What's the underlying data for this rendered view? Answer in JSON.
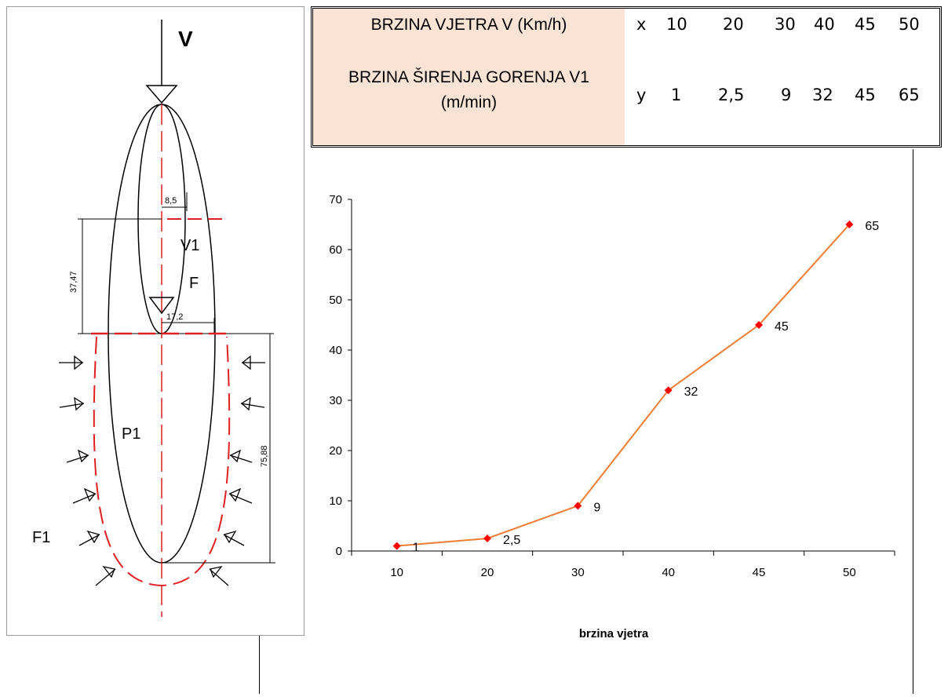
{
  "diagram": {
    "v_label": "V",
    "v1_label": "V1",
    "f_label": "F",
    "p1_label": "P1",
    "f1_label": "F1",
    "dim_8_5": "8,5",
    "dim_37_47": "37,47",
    "dim_17_2": "17,2",
    "dim_75_88": "75,88"
  },
  "table": {
    "row1_label": "BRZINA VJETRA V (Km/h)",
    "row2_label_line1": "BRZINA ŠIRENJA GORENJA V1",
    "row2_label_line2": "(m/min)",
    "x_symbol": "x",
    "y_symbol": "y",
    "x_values": [
      "10",
      "20",
      "30",
      "40",
      "45",
      "50"
    ],
    "y_values": [
      "1",
      "2,5",
      "9",
      "32",
      "45",
      "65"
    ],
    "label_fill": "#fbe4d5"
  },
  "chart_data": {
    "type": "line",
    "categories": [
      "10",
      "20",
      "30",
      "40",
      "45",
      "50"
    ],
    "series": [
      {
        "values": [
          1,
          2.5,
          9,
          32,
          45,
          65
        ],
        "data_labels": [
          "1",
          "2,5",
          "9",
          "32",
          "45",
          "65"
        ],
        "line_color": "#ed7d31",
        "marker_color": "#ff0000"
      }
    ],
    "title": "",
    "xlabel": "brzina vjetra",
    "ylabel": "",
    "ylim": [
      0,
      70
    ],
    "yticks": [
      "0",
      "10",
      "20",
      "30",
      "40",
      "50",
      "60",
      "70"
    ],
    "grid": false,
    "legend": "none"
  }
}
